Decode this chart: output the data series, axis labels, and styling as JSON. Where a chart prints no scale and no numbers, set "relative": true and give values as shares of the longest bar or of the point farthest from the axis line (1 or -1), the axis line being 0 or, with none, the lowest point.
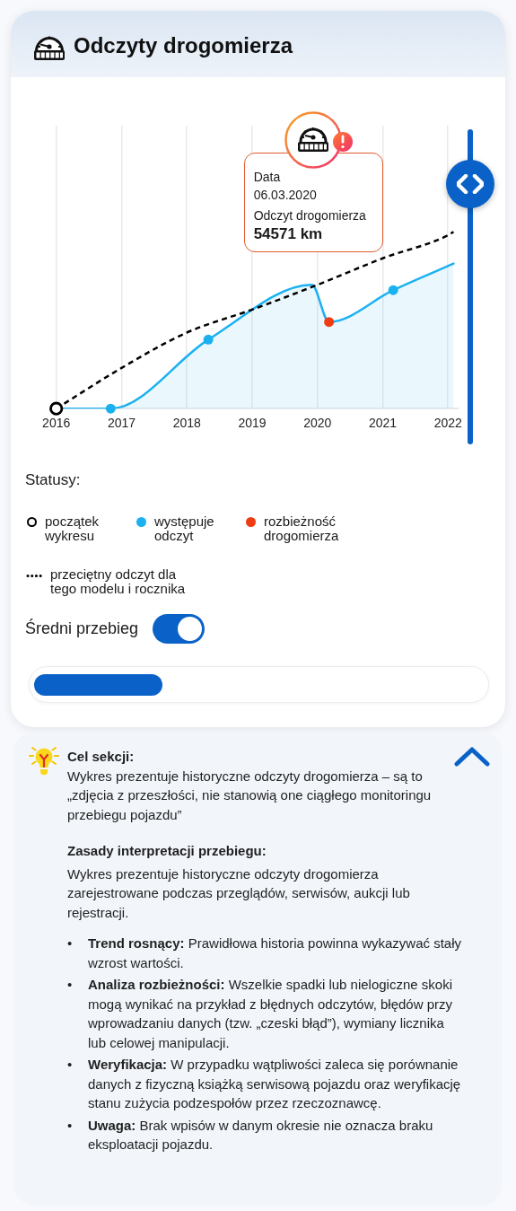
{
  "chart_data": {
    "type": "line",
    "title": "Odczyty drogomierza",
    "legend_title": "Statusy:",
    "legend": "bottom",
    "grid": "x",
    "tick_labels": "x",
    "relative": true,
    "xlim": [
      "2016",
      "2022-03"
    ],
    "xticks": [
      "2016",
      "2017",
      "2018",
      "2019",
      "2020",
      "2021",
      "2022"
    ],
    "series": [
      {
        "type": "area",
        "color": "#1bb1f0",
        "marker": "none",
        "x": [
          "2016",
          "2016-11",
          "2018-05",
          "2019-12",
          "2020-03-06",
          "2021-03",
          "2022-02"
        ],
        "values": [
          0,
          0,
          0.39,
          0.7,
          0.49,
          0.67,
          0.82
        ]
      },
      {
        "name": "początek wykresu",
        "type": "scatter",
        "color": "#000000",
        "marker": "circle",
        "x": [
          "2016"
        ],
        "values": [
          0
        ]
      },
      {
        "name": "występuje odczyt",
        "type": "scatter",
        "color": "#1bb1f0",
        "marker": "circle",
        "x": [
          "2016-11",
          "2018-05",
          "2021-03"
        ],
        "values": [
          0,
          0.39,
          0.67
        ]
      },
      {
        "name": "rozbieżność drogomierza",
        "type": "scatter",
        "color": "#f03c14",
        "marker": "circle",
        "x": [
          "2020-03-06"
        ],
        "values": [
          0.49
        ]
      },
      {
        "name": "przeciętny odczyt dla tego modelu i rocznika",
        "type": "line",
        "color": "#000000",
        "marker": "none",
        "line_style": "dashed",
        "x": [
          "2016",
          "2017",
          "2018",
          "2019",
          "2020",
          "2021",
          "2022",
          "2022-02"
        ],
        "values": [
          0,
          0.23,
          0.43,
          0.56,
          0.7,
          0.85,
          0.98,
          1
        ]
      }
    ],
    "annotations": [
      "Data",
      "06.03.2020",
      "Odczyt drogomierza",
      "54571 km",
      "Średni przebieg",
      "Cel sekcji:",
      "Wykres prezentuje historyczne odczyty drogomierza – są to „zdjęcia z przeszłości, nie stanowią one ciągłego monitoringu przebiegu pojazdu”",
      "Zasady interpretacji przebiegu:",
      "Wykres prezentuje historyczne odczyty drogomierza zarejestrowane podczas przeglądów, serwisów, aukcji lub rejestracji.",
      "• Trend rosnący: Prawidłowa historia powinna wykazywać stały wzrost wartości.",
      "• Analiza rozbieżności: Wszelkie spadki lub nielogiczne skoki mogą wynikać na przykład z błędnych odczytów, błędów przy wprowadzaniu danych (tzw. „czeski błąd”), wymiany licznika lub celowej manipulacji.",
      "• Weryfikacja: W przypadku wątpliwości zaleca się porównanie danych z fizyczną książką serwisową pojazdu oraz weryfikację stanu zużycia podzespołów przez rzeczoznawcę.",
      "• Uwaga: Brak wpisów w danym okresie nie oznacza braku eksploatacji pojazdu."
    ]
  }
}
